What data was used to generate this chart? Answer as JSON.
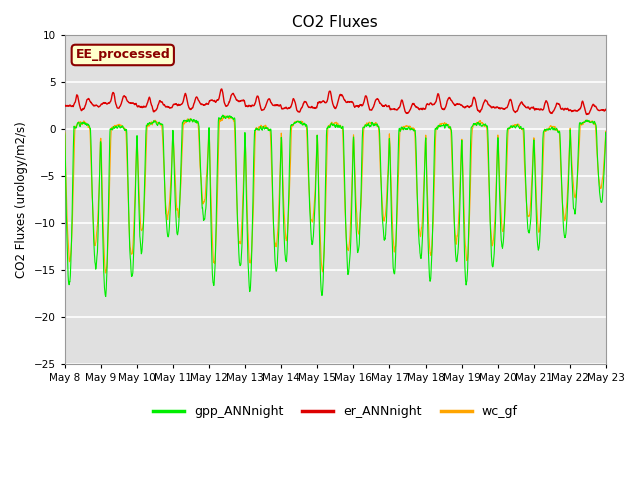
{
  "title": "CO2 Fluxes",
  "ylabel": "CO2 Fluxes (urology/m2/s)",
  "ylim": [
    -25,
    10
  ],
  "yticks": [
    -25,
    -20,
    -15,
    -10,
    -5,
    0,
    5,
    10
  ],
  "background_color": "#ffffff",
  "plot_bg_color": "#e0e0e0",
  "grid_color": "#ffffff",
  "annotation_text": "EE_processed",
  "annotation_color": "#8b0000",
  "annotation_bg": "#ffffcc",
  "line_colors": {
    "gpp": "#00ee00",
    "er": "#dd0000",
    "wc": "#ffa500"
  },
  "legend_labels": [
    "gpp_ANNnight",
    "er_ANNnight",
    "wc_gf"
  ],
  "n_days": 15,
  "pts_per_day": 144
}
